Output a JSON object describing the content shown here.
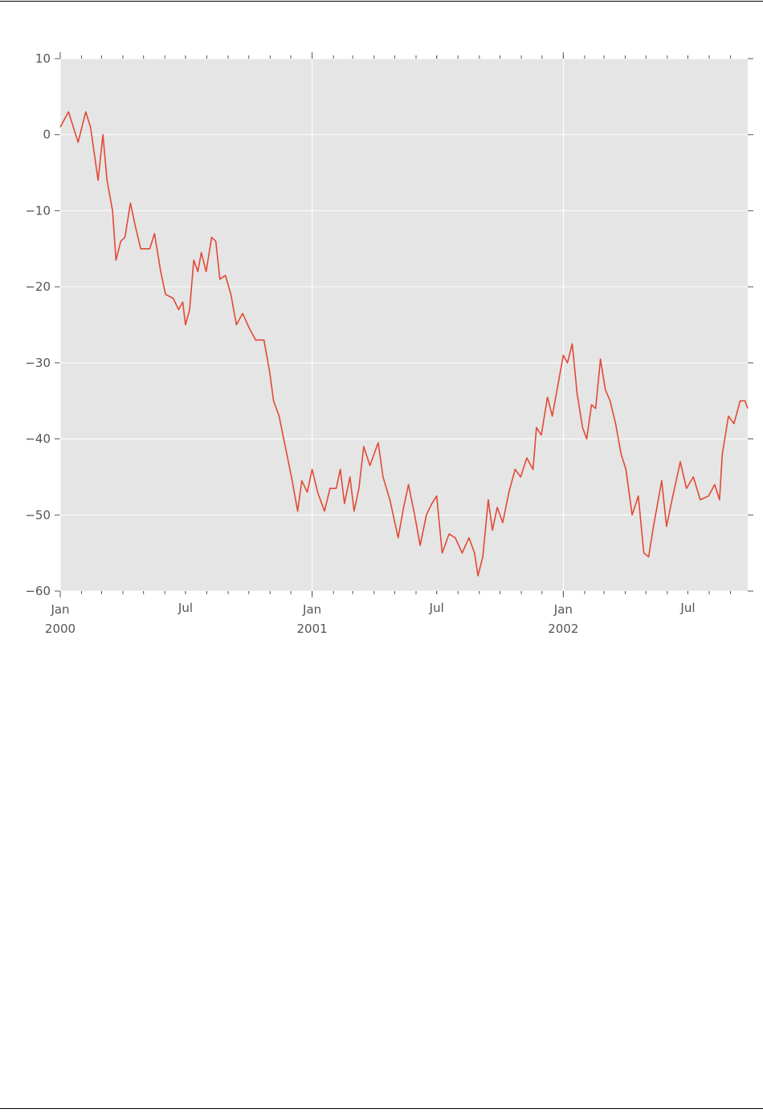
{
  "chart_data": {
    "type": "line",
    "x": [
      "2000-01-01",
      "2000-01-13",
      "2000-01-27",
      "2000-02-07",
      "2000-02-14",
      "2000-02-25",
      "2000-03-03",
      "2000-03-09",
      "2000-03-17",
      "2000-03-22",
      "2000-03-29",
      "2000-04-04",
      "2000-04-12",
      "2000-04-19",
      "2000-04-27",
      "2000-05-10",
      "2000-05-17",
      "2000-05-26",
      "2000-06-02",
      "2000-06-13",
      "2000-06-21",
      "2000-06-27",
      "2000-07-01",
      "2000-07-07",
      "2000-07-13",
      "2000-07-19",
      "2000-07-24",
      "2000-07-31",
      "2000-08-08",
      "2000-08-14",
      "2000-08-20",
      "2000-08-28",
      "2000-09-05",
      "2000-09-13",
      "2000-09-22",
      "2000-10-02",
      "2000-10-11",
      "2000-10-23",
      "2000-10-31",
      "2000-11-06",
      "2000-11-14",
      "2000-11-23",
      "2000-12-02",
      "2000-12-11",
      "2000-12-17",
      "2000-12-25",
      "2001-01-01",
      "2001-01-09",
      "2001-01-19",
      "2001-01-27",
      "2001-02-05",
      "2001-02-11",
      "2001-02-17",
      "2001-02-25",
      "2001-03-03",
      "2001-03-10",
      "2001-03-17",
      "2001-03-26",
      "2001-04-07",
      "2001-04-14",
      "2001-04-24",
      "2001-05-06",
      "2001-05-14",
      "2001-05-21",
      "2001-05-30",
      "2001-06-07",
      "2001-06-16",
      "2001-06-24",
      "2001-07-01",
      "2001-07-09",
      "2001-07-19",
      "2001-07-28",
      "2001-08-07",
      "2001-08-17",
      "2001-08-25",
      "2001-08-30",
      "2001-09-06",
      "2001-09-14",
      "2001-09-20",
      "2001-09-27",
      "2001-10-05",
      "2001-10-14",
      "2001-10-23",
      "2001-10-31",
      "2001-11-09",
      "2001-11-18",
      "2001-11-23",
      "2001-11-30",
      "2001-12-09",
      "2001-12-16",
      "2001-12-23",
      "2002-01-01",
      "2002-01-07",
      "2002-01-14",
      "2002-01-21",
      "2002-01-29",
      "2002-02-04",
      "2002-02-11",
      "2002-02-17",
      "2002-02-24",
      "2002-03-03",
      "2002-03-10",
      "2002-03-18",
      "2002-03-26",
      "2002-04-02",
      "2002-04-11",
      "2002-04-20",
      "2002-04-28",
      "2002-05-05",
      "2002-05-12",
      "2002-05-19",
      "2002-05-24",
      "2002-05-31",
      "2002-06-08",
      "2002-06-20",
      "2002-06-29",
      "2002-07-09",
      "2002-07-19",
      "2002-07-31",
      "2002-08-09",
      "2002-08-16",
      "2002-08-20",
      "2002-08-29",
      "2002-09-06",
      "2002-09-15",
      "2002-09-22",
      "2002-09-26"
    ],
    "series": [
      {
        "color": "#e24a33",
        "values": [
          1,
          3,
          -1,
          3,
          1,
          -6,
          0,
          -6,
          -10,
          -16.5,
          -14,
          -13.5,
          -9,
          -12,
          -15,
          -15,
          -13,
          -18,
          -21,
          -21.5,
          -23,
          -22,
          -25,
          -23,
          -16.5,
          -18,
          -15.5,
          -18,
          -13.5,
          -14,
          -19,
          -18.5,
          -21,
          -25,
          -23.5,
          -25.5,
          -27,
          -27,
          -31,
          -35,
          -37,
          -41,
          -45,
          -49.5,
          -45.5,
          -47,
          -44,
          -47,
          -49.5,
          -46.5,
          -46.5,
          -44,
          -48.5,
          -45,
          -49.5,
          -46.5,
          -41,
          -43.5,
          -40.5,
          -45,
          -48,
          -53,
          -49,
          -46,
          -50,
          -54,
          -50,
          -48.5,
          -47.5,
          -55,
          -52.5,
          -53,
          -55,
          -53,
          -55,
          -58,
          -55.5,
          -48,
          -52,
          -49,
          -51,
          -47,
          -44,
          -45,
          -42.5,
          -44,
          -38.5,
          -39.5,
          -34.5,
          -37,
          -33.5,
          -29,
          -30,
          -27.5,
          -34,
          -38.5,
          -40,
          -35.5,
          -36,
          -29.5,
          -33.5,
          -35,
          -38,
          -42,
          -44,
          -50,
          -47.5,
          -55,
          -55.5,
          -51.5,
          -48,
          -45.5,
          -51.5,
          -48,
          -43,
          -46.5,
          -45,
          -48,
          -47.5,
          -46,
          -48,
          -42,
          -37,
          -38,
          -35,
          -35,
          -36
        ]
      }
    ],
    "xlim": [
      "2000-01-01",
      "2002-09-26"
    ],
    "xticks": [
      {
        "value": "2000-01-01",
        "label": "Jan",
        "year": "2000"
      },
      {
        "value": "2000-07-01",
        "label": "Jul"
      },
      {
        "value": "2001-01-01",
        "label": "Jan",
        "year": "2001"
      },
      {
        "value": "2001-07-01",
        "label": "Jul"
      },
      {
        "value": "2002-01-01",
        "label": "Jan",
        "year": "2002"
      },
      {
        "value": "2002-07-01",
        "label": "Jul"
      }
    ],
    "ylim": [
      -60,
      10
    ],
    "yticks": [
      10,
      0,
      {
        "value": -10,
        "label": "−10"
      },
      {
        "value": -20,
        "label": "−20"
      },
      {
        "value": -30,
        "label": "−30"
      },
      {
        "value": -40,
        "label": "−40"
      },
      {
        "value": -50,
        "label": "−50"
      },
      {
        "value": -60,
        "label": "−60"
      }
    ],
    "grid": true
  }
}
